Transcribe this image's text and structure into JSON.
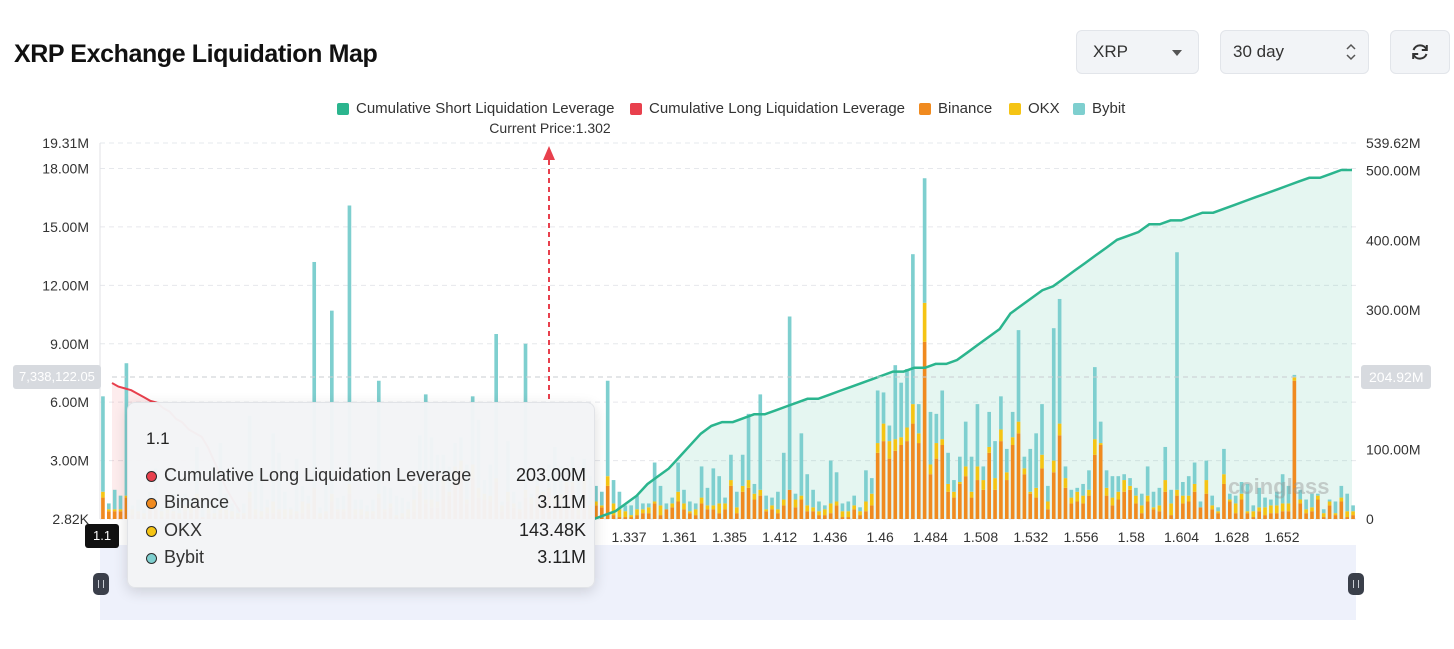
{
  "header": {
    "title": "XRP Exchange Liquidation Map",
    "coin_select": "XRP",
    "range_select": "30 day",
    "refresh_icon": "refresh-icon"
  },
  "legend": {
    "short": "Cumulative Short Liquidation Leverage",
    "long": "Cumulative Long Liquidation Leverage",
    "binance": "Binance",
    "okx": "OKX",
    "bybit": "Bybit"
  },
  "current_price_label": "Current Price:1.302",
  "crosshair": {
    "left_value": "7,338,122.05",
    "right_value": "204.92M",
    "x_value": "1.1"
  },
  "tooltip": {
    "title": "1.1",
    "rows": [
      {
        "label": "Cumulative Long Liquidation Leverage",
        "value": "203.00M",
        "color": "#e8404d"
      },
      {
        "label": "Binance",
        "value": "3.11M",
        "color": "#f08a1f"
      },
      {
        "label": "OKX",
        "value": "143.48K",
        "color": "#f5c414"
      },
      {
        "label": "Bybit",
        "value": "3.11M",
        "color": "#7ecfcf"
      }
    ]
  },
  "watermark": "coinglass",
  "chart_data": {
    "type": "bar",
    "x_ticks": [
      "1.337",
      "1.361",
      "1.385",
      "1.412",
      "1.436",
      "1.46",
      "1.484",
      "1.508",
      "1.532",
      "1.556",
      "1.58",
      "1.604",
      "1.628",
      "1.652"
    ],
    "left_axis_ticks": [
      "19.31M",
      "18.00M",
      "15.00M",
      "12.00M",
      "9.00M",
      "6.00M",
      "3.00M",
      "2.82K"
    ],
    "right_axis_ticks": [
      "539.62M",
      "500.00M",
      "400.00M",
      "300.00M",
      "100.00M",
      "0"
    ],
    "left_ylim": [
      0,
      19310000
    ],
    "right_ylim": [
      0,
      539620000
    ],
    "current_price": 1.302,
    "colors": {
      "binance": "#f08a1f",
      "okx": "#f5c414",
      "bybit": "#7ecfcf",
      "short": "#2bb58e",
      "long": "#e8404d"
    },
    "series": [
      {
        "name": "Binance",
        "values": [
          1.1,
          0.4,
          0.4,
          0.4,
          1.1,
          0.2,
          0.3,
          0.1,
          0.5,
          0.6,
          0.1,
          0.3,
          0.3,
          0.2,
          0.4,
          0.3,
          0.8,
          0.1,
          0.3,
          0.1,
          0.3,
          0.2,
          0.1,
          0.1,
          0.2,
          1.1,
          0.2,
          0.1,
          0.3,
          0.3,
          0.4,
          0.1,
          0.2,
          0.3,
          0.3,
          0.5,
          1.5,
          0.1,
          0.3,
          0.9,
          0.4,
          0.4,
          1.3,
          0.2,
          0.2,
          0.1,
          0.3,
          1.1,
          0.4,
          0.6,
          0.1,
          0.1,
          0.1,
          0.4,
          1.4,
          0.8,
          0.6,
          0.6,
          1.7,
          1.2,
          2.1,
          2.5,
          0.8,
          2.1,
          1.1,
          1.0,
          0.9,
          1.9,
          0.4,
          0.9,
          0.6,
          0.4,
          1.1,
          0.8,
          1.3,
          1.2,
          1.4,
          0.8,
          1.0,
          1.7,
          1.7,
          0.2,
          1.5,
          0.2,
          0.7,
          0.6,
          1.7,
          0.2,
          0.1,
          0.1,
          0.1,
          0.2,
          0.3,
          0.3,
          0.8,
          0.2,
          0.5,
          0.6,
          0.9,
          0.5,
          0.3,
          0.2,
          0.8,
          0.5,
          0.5,
          0.3,
          0.5,
          1.7,
          0.3,
          1.4,
          1.6,
          1.0,
          1.2,
          0.4,
          0.5,
          0.3,
          0.7,
          1.5,
          0.6,
          1.0,
          0.4,
          0.4,
          0.2,
          0.2,
          0.3,
          0.7,
          0.1,
          0.1,
          0.5,
          0.2,
          0.4,
          0.7,
          3.4,
          4.0,
          3.1,
          3.5,
          3.8,
          4.0,
          4.9,
          3.9,
          9.1,
          2.3,
          3.1,
          3.8,
          1.4,
          1.1,
          1.8,
          2.2,
          1.1,
          2.0,
          1.5,
          3.4,
          1.5,
          4.0,
          2.0,
          3.8,
          4.4,
          2.3,
          1.3,
          1.1,
          2.6,
          0.5,
          2.4,
          4.3,
          1.6,
          0.8,
          0.9,
          0.8,
          1.2,
          3.3,
          3.8,
          1.2,
          0.7,
          1.0,
          1.4,
          1.5,
          0.8,
          0.3,
          0.9,
          0.5,
          0.4,
          1.4,
          0.2,
          1.2,
          0.8,
          0.9,
          1.4,
          0.6,
          1.3,
          0.5,
          0.3,
          1.8,
          0.9,
          0.3,
          1.0,
          0.3,
          0.1,
          0.4,
          0.2,
          0.3,
          0.3,
          0.4,
          0.4,
          7.1,
          0.8,
          0.3,
          0.4,
          1.0,
          0.1,
          0.7,
          0.2,
          0.9,
          0.1,
          0.2
        ]
      },
      {
        "name": "OKX",
        "values": [
          0.3,
          0.1,
          0.1,
          0.1,
          0.1,
          0.3,
          0.1,
          0.2,
          0.3,
          0.1,
          0.3,
          0.2,
          0.1,
          0.1,
          0.3,
          0.4,
          0.5,
          0.0,
          0.3,
          0.2,
          0.2,
          0.3,
          0.3,
          0.2,
          0.1,
          0.3,
          0.3,
          0.3,
          0.3,
          0.6,
          0.1,
          0.4,
          0.3,
          0.1,
          0.6,
          0.3,
          0.1,
          0.2,
          0.1,
          0.4,
          0.1,
          0.1,
          0.5,
          0.3,
          0.3,
          0.3,
          0.1,
          0.2,
          0.1,
          0.2,
          0.1,
          0.2,
          0.4,
          0.6,
          0.4,
          0.2,
          0.4,
          0.3,
          0.6,
          0.2,
          0.6,
          0.5,
          0.2,
          0.7,
          0.5,
          0.3,
          0.3,
          0.2,
          0.3,
          0.5,
          0.2,
          0.1,
          0.4,
          0.3,
          0.4,
          0.2,
          0.2,
          0.4,
          0.3,
          0.2,
          0.2,
          0.4,
          0.6,
          0.5,
          0.2,
          0.1,
          0.5,
          0.6,
          0.4,
          0.3,
          0.1,
          0.3,
          0.2,
          0.3,
          0.1,
          0.5,
          0.0,
          0.2,
          0.5,
          0.3,
          0.1,
          0.3,
          0.3,
          0.2,
          0.2,
          0.5,
          0.3,
          0.3,
          0.3,
          0.3,
          0.4,
          0.3,
          0.3,
          0.1,
          0.2,
          0.2,
          0.3,
          0.0,
          0.4,
          0.2,
          0.3,
          0.2,
          0.2,
          0.3,
          0.5,
          0.2,
          0.3,
          0.3,
          0.2,
          0.2,
          0.5,
          0.6,
          0.5,
          0.9,
          0.9,
          0.6,
          0.4,
          0.7,
          1.0,
          0.5,
          2.0,
          0.5,
          0.8,
          0.3,
          0.4,
          0.3,
          0.1,
          0.5,
          0.3,
          0.7,
          0.5,
          0.3,
          0.6,
          0.6,
          0.4,
          0.4,
          0.6,
          0.3,
          0.1,
          0.5,
          0.7,
          0.4,
          0.6,
          0.6,
          0.5,
          0.3,
          0.5,
          0.4,
          0.3,
          0.8,
          0.1,
          0.4,
          0.4,
          0.4,
          0.6,
          0.2,
          0.4,
          0.4,
          0.3,
          0.1,
          0.3,
          0.6,
          0.6,
          0.3,
          0.4,
          0.3,
          0.4,
          0.0,
          0.7,
          0.2,
          0.1,
          0.5,
          0.1,
          0.5,
          0.3,
          0.1,
          0.3,
          0.2,
          0.4,
          0.4,
          0.4,
          0.4,
          0.4,
          0.2,
          0.2,
          0.2,
          0.2,
          0.2,
          0.2,
          0.2,
          0.1,
          0.2,
          0.3,
          0.2
        ]
      },
      {
        "name": "Bybit",
        "values": [
          4.9,
          0.3,
          1.0,
          0.7,
          6.8,
          0.2,
          0.6,
          0.2,
          0.6,
          1.9,
          0.2,
          0.4,
          0.9,
          0.9,
          0.6,
          0.4,
          2.4,
          0.8,
          0.4,
          0.5,
          3.4,
          0.8,
          0.4,
          0.3,
          0.5,
          3.9,
          2.0,
          2.1,
          0.4,
          3.5,
          2.9,
          0.9,
          0.1,
          2.7,
          0.8,
          0.4,
          11.6,
          0.3,
          1.4,
          9.4,
          0.6,
          0.7,
          14.3,
          0.5,
          0.5,
          0.3,
          0.6,
          5.8,
          1.2,
          0.8,
          1.0,
          0.8,
          0.4,
          0.7,
          2.5,
          5.4,
          3.2,
          2.4,
          1.0,
          1.3,
          1.2,
          1.2,
          1.8,
          3.5,
          3.5,
          0.7,
          1.6,
          7.4,
          0.2,
          2.6,
          0.6,
          0.4,
          7.5,
          0.2,
          0.4,
          0.1,
          1.2,
          2.5,
          1.4,
          0.6,
          1.3,
          1.9,
          1.0,
          1.5,
          0.8,
          0.7,
          4.9,
          1.2,
          0.9,
          0.3,
          0.5,
          0.7,
          0.3,
          0.2,
          2.0,
          1.0,
          0.3,
          0.3,
          1.5,
          0.7,
          0.5,
          0.3,
          1.6,
          0.9,
          1.9,
          1.4,
          0.3,
          1.3,
          0.8,
          1.6,
          3.4,
          0.5,
          4.9,
          0.7,
          0.4,
          0.9,
          2.4,
          8.9,
          0.3,
          3.2,
          1.6,
          0.9,
          0.5,
          0.2,
          2.2,
          1.5,
          0.4,
          0.5,
          0.5,
          0.2,
          1.6,
          0.8,
          2.7,
          1.6,
          0.8,
          3.8,
          2.8,
          3.0,
          7.7,
          1.5,
          6.4,
          2.7,
          1.5,
          2.5,
          1.6,
          0.6,
          1.3,
          2.3,
          1.8,
          3.2,
          0.7,
          1.8,
          1.9,
          1.7,
          1.2,
          1.3,
          4.7,
          0.6,
          2.2,
          2.8,
          2.6,
          0.8,
          6.8,
          6.4,
          0.6,
          0.4,
          0.2,
          0.6,
          1.0,
          3.7,
          1.1,
          0.9,
          1.1,
          0.8,
          0.3,
          0.4,
          0.4,
          0.6,
          1.5,
          0.8,
          0.9,
          1.7,
          0.7,
          12.2,
          0.7,
          1.0,
          1.1,
          0.3,
          1.0,
          0.5,
          0.2,
          1.3,
          0.3,
          0.4,
          0.6,
          1.4,
          0.3,
          1.0,
          0.5,
          0.3,
          0.7,
          1.5,
          0.9,
          0.1,
          0.5,
          0.5,
          0.7,
          0.1,
          0.2,
          0.1,
          0.6,
          0.6,
          0.9,
          0.3,
          0.6,
          0.1
        ]
      }
    ],
    "long_cumulative_pct": [
      0.38,
      0.37,
      0.365,
      0.36,
      0.35,
      0.34,
      0.33,
      0.325,
      0.31,
      0.3,
      0.28,
      0.27,
      0.25,
      0.24,
      0.23,
      0.2,
      0.16,
      0.12,
      0.08,
      0.05,
      0.02
    ],
    "short_cumulative_pct": [
      0.0,
      0.01,
      0.02,
      0.04,
      0.06,
      0.09,
      0.11,
      0.13,
      0.16,
      0.19,
      0.22,
      0.24,
      0.25,
      0.25,
      0.26,
      0.27,
      0.27,
      0.28,
      0.29,
      0.3,
      0.31,
      0.31,
      0.32,
      0.33,
      0.34,
      0.35,
      0.36,
      0.37,
      0.38,
      0.38,
      0.39,
      0.39,
      0.4,
      0.4,
      0.41,
      0.43,
      0.45,
      0.47,
      0.49,
      0.53,
      0.55,
      0.57,
      0.59,
      0.6,
      0.62,
      0.64,
      0.66,
      0.68,
      0.7,
      0.72,
      0.73,
      0.74,
      0.76,
      0.76,
      0.77,
      0.77,
      0.78,
      0.79,
      0.79,
      0.8,
      0.81,
      0.82,
      0.83,
      0.84,
      0.85,
      0.86,
      0.87,
      0.88,
      0.88,
      0.89,
      0.9,
      0.9
    ]
  }
}
